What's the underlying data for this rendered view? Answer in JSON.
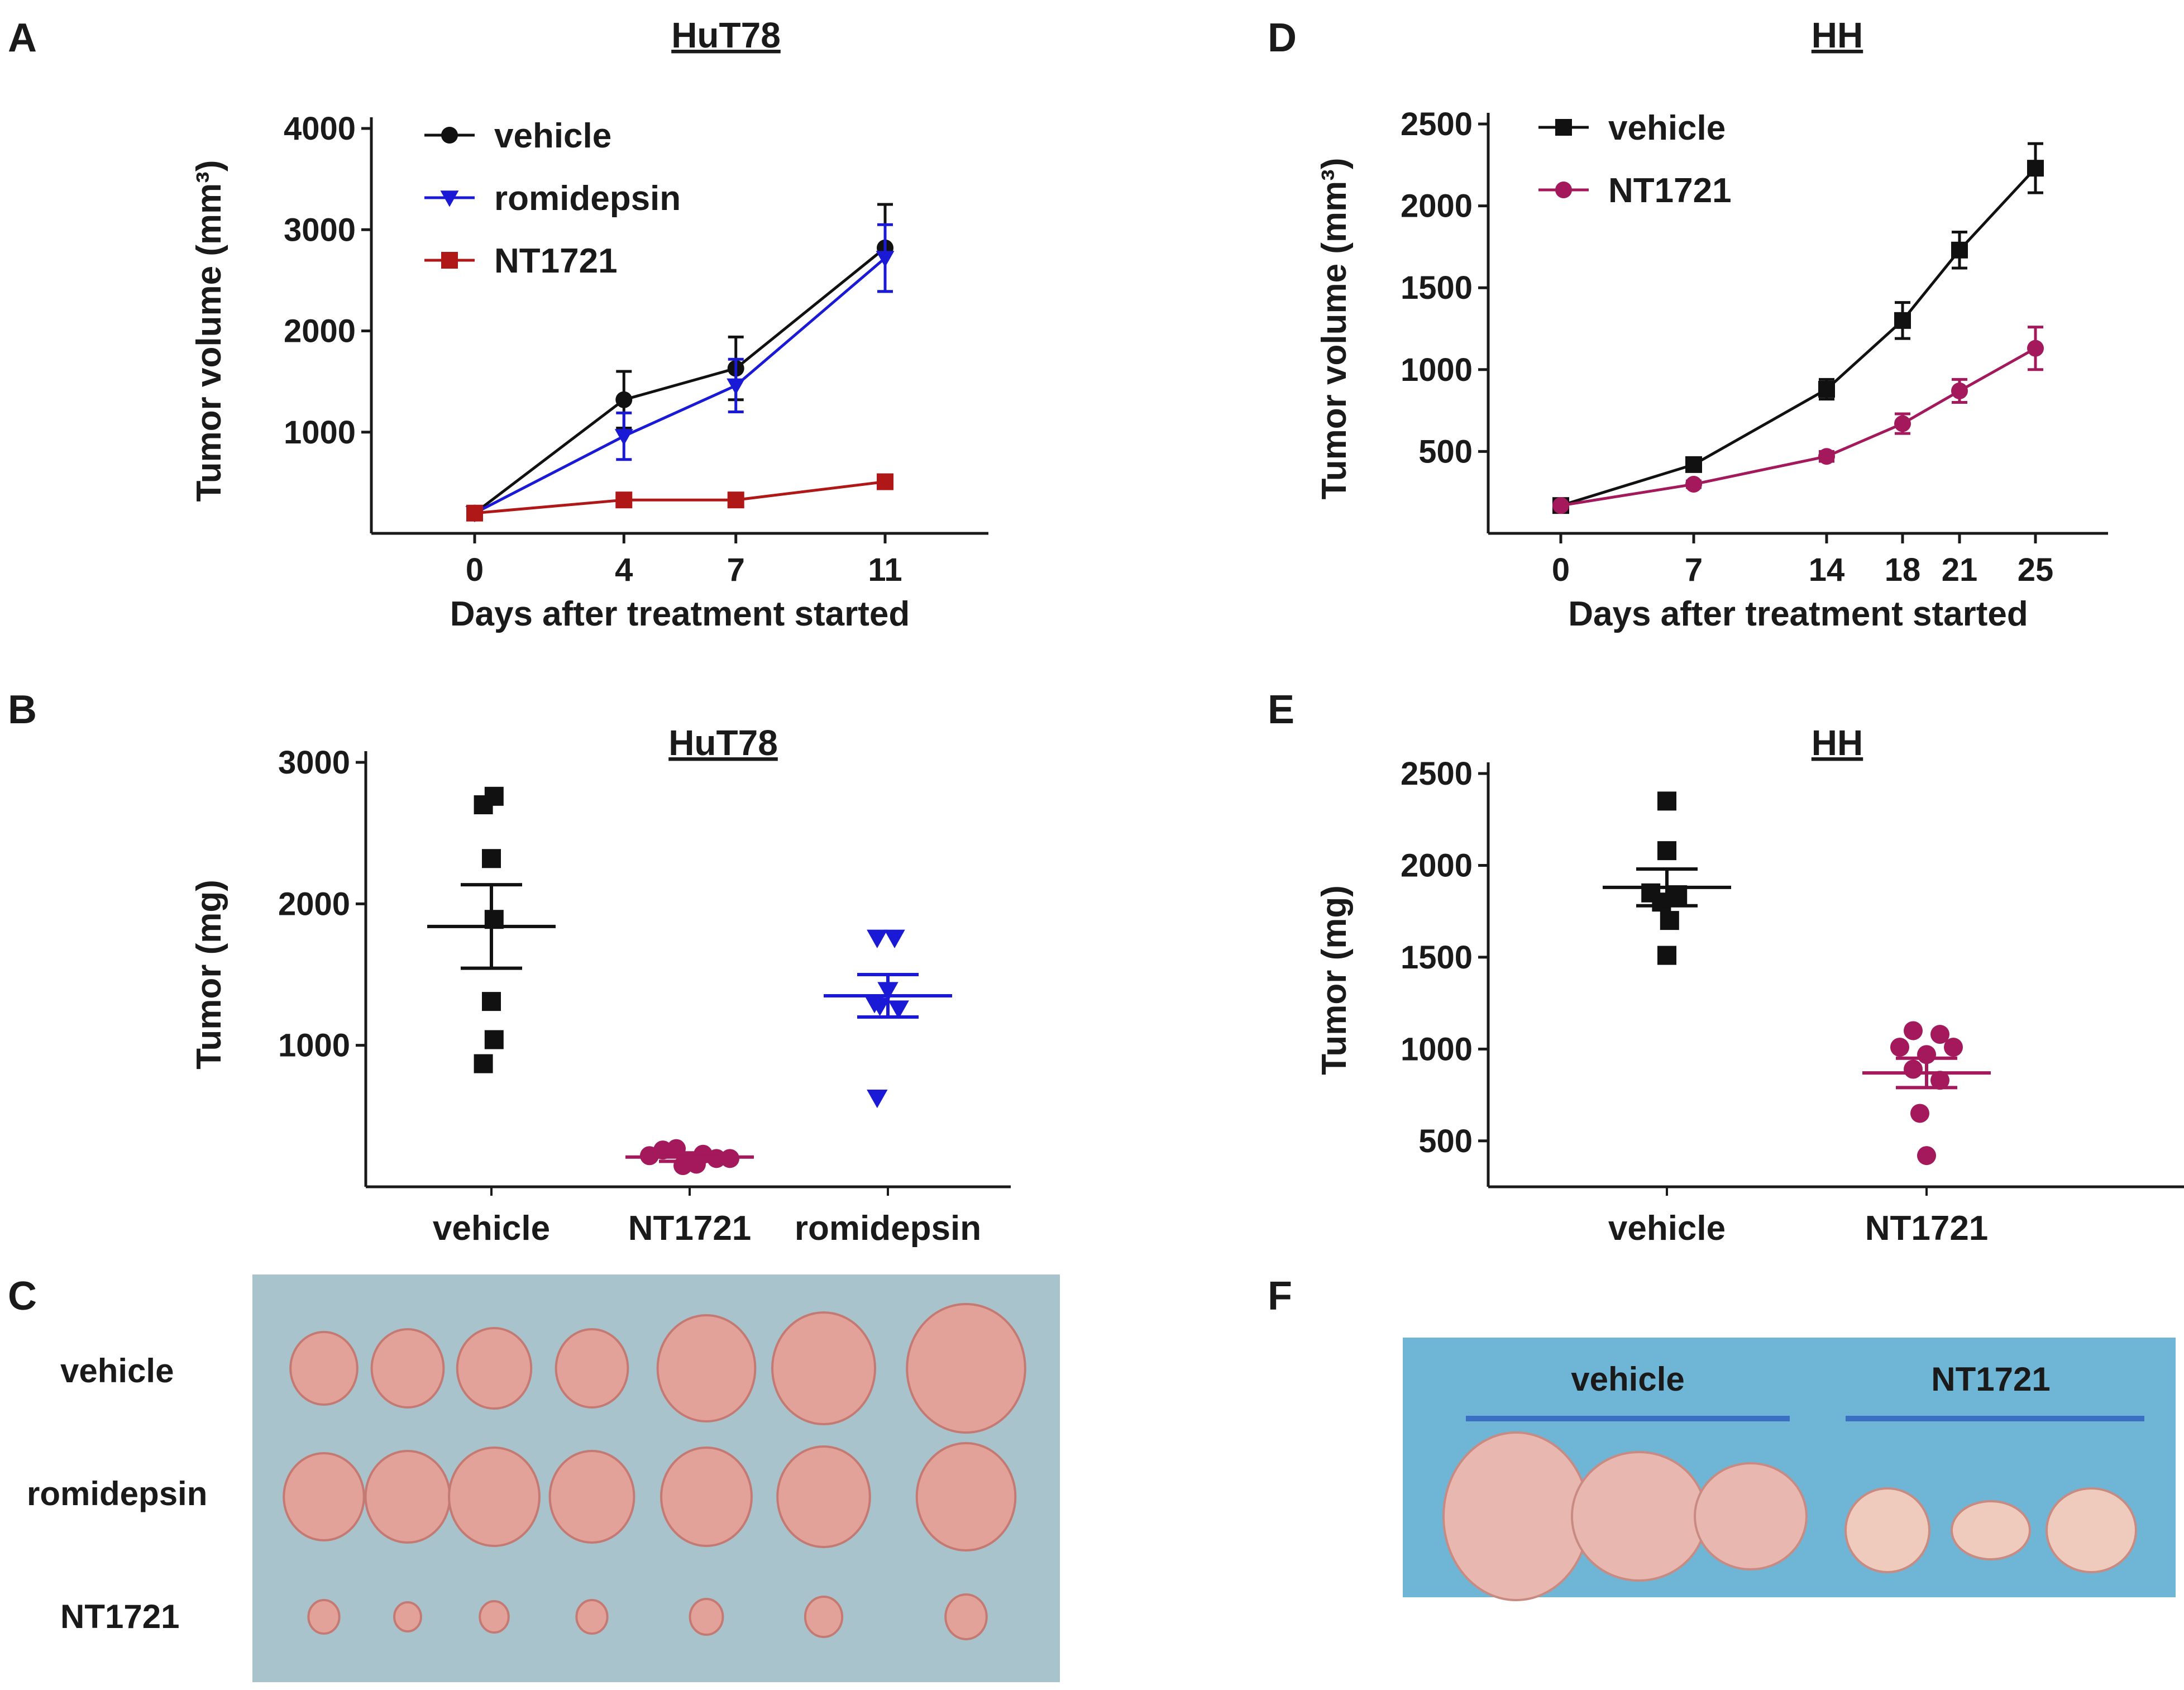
{
  "colors": {
    "vehicle": "#111111",
    "romidepsin": "#1a1ad6",
    "nt1721_red": "#b01818",
    "nt1721_magenta": "#a3195b",
    "photo_bg_c": "#a9c3cc",
    "photo_bg_f": "#6fb6d6",
    "tumor": "#e2a29a",
    "bar_line": "#3a6fc4"
  },
  "chart_data": [
    {
      "panel": "A",
      "type": "line",
      "title": "HuT78",
      "xlabel": "Days after treatment started",
      "ylabel": "Tumor volume (mm³)",
      "x": [
        0,
        4,
        7,
        11
      ],
      "xticks": [
        "0",
        "4",
        "7",
        "11"
      ],
      "yticks": [
        1000,
        2000,
        3000,
        4000
      ],
      "ylim": [
        0,
        4000
      ],
      "legend_position": "top-left",
      "series": [
        {
          "name": "vehicle",
          "values": [
            200,
            1320,
            1630,
            2820
          ],
          "err": [
            0,
            280,
            310,
            430
          ],
          "marker": "circle"
        },
        {
          "name": "romidepsin",
          "values": [
            200,
            960,
            1460,
            2720
          ],
          "err": [
            0,
            230,
            260,
            330
          ],
          "marker": "triangle-down"
        },
        {
          "name": "NT1721",
          "values": [
            200,
            330,
            330,
            510
          ],
          "err": [
            0,
            0,
            0,
            0
          ],
          "marker": "square"
        }
      ]
    },
    {
      "panel": "D",
      "type": "line",
      "title": "HH",
      "xlabel": "Days after treatment started",
      "ylabel": "Tumor volume (mm³)",
      "x": [
        0,
        7,
        14,
        18,
        21,
        25
      ],
      "xticks": [
        "0",
        "7",
        "14",
        "18",
        "21",
        "25"
      ],
      "yticks": [
        500,
        1000,
        1500,
        2000,
        2500
      ],
      "ylim": [
        0,
        2500
      ],
      "legend_position": "top-left",
      "series": [
        {
          "name": "vehicle",
          "values": [
            170,
            420,
            880,
            1300,
            1730,
            2230
          ],
          "err": [
            0,
            30,
            60,
            110,
            110,
            150
          ],
          "marker": "square"
        },
        {
          "name": "NT1721",
          "values": [
            170,
            300,
            470,
            670,
            870,
            1130
          ],
          "err": [
            0,
            20,
            30,
            60,
            70,
            130
          ],
          "marker": "circle"
        }
      ]
    },
    {
      "panel": "B",
      "type": "scatter",
      "title": "HuT78",
      "xlabel": "",
      "ylabel": "Tumor (mg)",
      "categories": [
        "vehicle",
        "NT1721",
        "romidepsin"
      ],
      "yticks": [
        1000,
        2000,
        3000
      ],
      "ylim": [
        0,
        3000
      ],
      "groups": [
        {
          "name": "vehicle",
          "marker": "square",
          "mean": 1840,
          "sem": 295,
          "points": [
            [
              -0.06,
              2700
            ],
            [
              0.02,
              2760
            ],
            [
              0.0,
              2320
            ],
            [
              0.02,
              1890
            ],
            [
              0.0,
              1310
            ],
            [
              0.02,
              1040
            ],
            [
              -0.06,
              870
            ]
          ]
        },
        {
          "name": "NT1721",
          "marker": "circle",
          "mean": 210,
          "sem": 30,
          "points": [
            [
              -0.3,
              220
            ],
            [
              -0.2,
              260
            ],
            [
              -0.1,
              270
            ],
            [
              0.0,
              180
            ],
            [
              0.1,
              230
            ],
            [
              0.2,
              200
            ],
            [
              0.3,
              200
            ],
            [
              -0.05,
              150
            ],
            [
              0.05,
              160
            ]
          ]
        },
        {
          "name": "romidepsin",
          "marker": "triangle-down",
          "mean": 1350,
          "sem": 150,
          "points": [
            [
              -0.08,
              1760
            ],
            [
              0.05,
              1760
            ],
            [
              -0.1,
              1300
            ],
            [
              0.0,
              1390
            ],
            [
              0.08,
              1260
            ],
            [
              -0.06,
              1280
            ],
            [
              -0.08,
              630
            ]
          ]
        }
      ]
    },
    {
      "panel": "E",
      "type": "scatter",
      "title": "HH",
      "xlabel": "",
      "ylabel": "Tumor (mg)",
      "categories": [
        "vehicle",
        "NT1721"
      ],
      "yticks": [
        500,
        1000,
        1500,
        2000,
        2500
      ],
      "ylim": [
        250,
        2500
      ],
      "groups": [
        {
          "name": "vehicle",
          "marker": "square",
          "mean": 1880,
          "sem": 100,
          "points": [
            [
              0.0,
              2350
            ],
            [
              0.0,
              2080
            ],
            [
              -0.12,
              1850
            ],
            [
              -0.04,
              1800
            ],
            [
              0.08,
              1840
            ],
            [
              0.02,
              1700
            ],
            [
              0.0,
              1510
            ]
          ]
        },
        {
          "name": "NT1721",
          "marker": "circle",
          "mean": 870,
          "sem": 80,
          "points": [
            [
              -0.1,
              1100
            ],
            [
              0.1,
              1080
            ],
            [
              -0.2,
              1010
            ],
            [
              0.0,
              970
            ],
            [
              0.2,
              1010
            ],
            [
              -0.1,
              890
            ],
            [
              0.1,
              830
            ],
            [
              -0.05,
              650
            ],
            [
              0.0,
              420
            ]
          ]
        }
      ]
    }
  ],
  "panel_c": {
    "letter": "C",
    "row_labels": [
      "vehicle",
      "romidepsin",
      "NT1721"
    ]
  },
  "panel_f": {
    "letter": "F",
    "group_labels": [
      "vehicle",
      "NT1721"
    ]
  }
}
